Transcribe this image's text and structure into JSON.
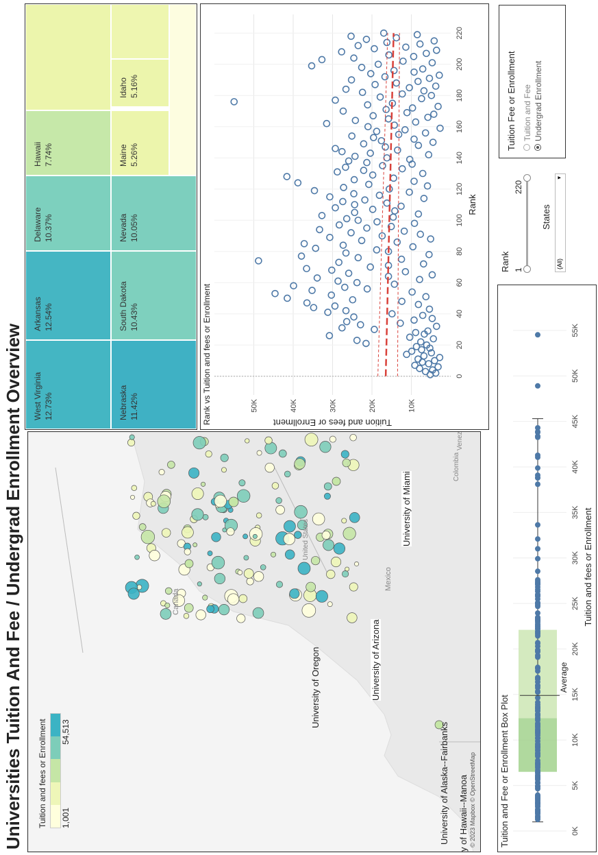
{
  "page_title": "Universities Tuition And Fee / Undergrad Enrollment Overview",
  "map": {
    "legend_title": "Tuition and fees or Enrollment",
    "legend_min": "1,001",
    "legend_max": "54,513",
    "legend_colors": [
      "#ffffdd",
      "#eef6b8",
      "#c5e6a6",
      "#7dcdb9",
      "#3bb3c4"
    ],
    "country_labels": [
      "Canada",
      "United States",
      "Mexico",
      "Colombia",
      "Venezuela"
    ],
    "university_labels": [
      "University of Alaska--Fairbanks",
      "University of Oregon",
      "University of Arizona",
      "University of Miami",
      "y of Hawaii--Manoa"
    ],
    "credit": "© 2023 Mapbox © OpenStreetMap"
  },
  "treemap": {
    "cells": [
      {
        "name": "West Virginia",
        "pct": "12.73%",
        "color": "#44b6c3"
      },
      {
        "name": "Arkansas",
        "pct": "12.54%",
        "color": "#45b6c3"
      },
      {
        "name": "Nebraska",
        "pct": "11.42%",
        "color": "#3fb1c4"
      },
      {
        "name": "South Dakota",
        "pct": "10.43%",
        "color": "#7ed0be"
      },
      {
        "name": "Delaware",
        "pct": "10.37%",
        "color": "#7dd0be"
      },
      {
        "name": "Nevada",
        "pct": "10.05%",
        "color": "#7dcfbe"
      },
      {
        "name": "Hawaii",
        "pct": "7.74%",
        "color": "#c6e8a9"
      },
      {
        "name": "Maine",
        "pct": "5.26%",
        "color": "#ecf5ac"
      },
      {
        "name": "Idaho",
        "pct": "5.16%",
        "color": "#ecf5ac"
      },
      {
        "name": "",
        "pct": "",
        "color": "#ecf5ac"
      },
      {
        "name": "",
        "pct": "",
        "color": "#eef6b0"
      },
      {
        "name": "",
        "pct": "",
        "color": "#fdfde0"
      }
    ]
  },
  "chart_data": [
    {
      "type": "scatter",
      "title": "Rank vs Tuition and fees or Enrollment",
      "xlabel": "Rank",
      "ylabel": "Tuition and fees or Enrollment",
      "xlim": [
        -12,
        232
      ],
      "ylim": [
        0,
        60000
      ],
      "x_ticks": [
        "0",
        "20",
        "40",
        "60",
        "80",
        "100",
        "120",
        "140",
        "160",
        "180",
        "200",
        "220"
      ],
      "y_ticks": [
        "10K",
        "20K",
        "30K",
        "40K",
        "50K"
      ],
      "trend": {
        "x": [
          0,
          220
        ],
        "y": [
          16500,
          14500
        ]
      },
      "band_upper": {
        "x": [
          0,
          220
        ],
        "y": [
          18500,
          16000
        ]
      },
      "band_lower": {
        "x": [
          0,
          220
        ],
        "y": [
          13500,
          13000
        ]
      },
      "points": [
        [
          1,
          5200
        ],
        [
          2,
          3800
        ],
        [
          3,
          6400
        ],
        [
          4,
          4600
        ],
        [
          5,
          7900
        ],
        [
          6,
          3200
        ],
        [
          7,
          9100
        ],
        [
          8,
          5600
        ],
        [
          9,
          7200
        ],
        [
          10,
          4100
        ],
        [
          11,
          8300
        ],
        [
          12,
          2800
        ],
        [
          13,
          6800
        ],
        [
          14,
          11200
        ],
        [
          15,
          4900
        ],
        [
          16,
          9900
        ],
        [
          17,
          7400
        ],
        [
          18,
          5300
        ],
        [
          19,
          8700
        ],
        [
          20,
          6100
        ],
        [
          21,
          21500
        ],
        [
          22,
          7600
        ],
        [
          23,
          23800
        ],
        [
          24,
          4400
        ],
        [
          25,
          10400
        ],
        [
          26,
          30800
        ],
        [
          27,
          6700
        ],
        [
          28,
          8900
        ],
        [
          29,
          5800
        ],
        [
          30,
          19400
        ],
        [
          31,
          27600
        ],
        [
          32,
          3600
        ],
        [
          33,
          22900
        ],
        [
          34,
          12800
        ],
        [
          35,
          26400
        ],
        [
          36,
          9300
        ],
        [
          37,
          4700
        ],
        [
          38,
          24600
        ],
        [
          39,
          7100
        ],
        [
          40,
          14900
        ],
        [
          41,
          31200
        ],
        [
          42,
          26600
        ],
        [
          43,
          5400
        ],
        [
          44,
          34800
        ],
        [
          45,
          29400
        ],
        [
          46,
          8200
        ],
        [
          47,
          36500
        ],
        [
          48,
          12400
        ],
        [
          49,
          24900
        ],
        [
          50,
          41500
        ],
        [
          51,
          6300
        ],
        [
          52,
          30300
        ],
        [
          53,
          44600
        ],
        [
          54,
          9800
        ],
        [
          55,
          35200
        ],
        [
          56,
          21200
        ],
        [
          57,
          26900
        ],
        [
          58,
          39900
        ],
        [
          59,
          14300
        ],
        [
          60,
          23800
        ],
        [
          61,
          28600
        ],
        [
          62,
          7900
        ],
        [
          63,
          33900
        ],
        [
          64,
          15800
        ],
        [
          65,
          4700
        ],
        [
          66,
          25900
        ],
        [
          67,
          11500
        ],
        [
          68,
          30200
        ],
        [
          69,
          36600
        ],
        [
          70,
          20400
        ],
        [
          71,
          15800
        ],
        [
          72,
          6900
        ],
        [
          73,
          28400
        ],
        [
          74,
          48800
        ],
        [
          75,
          12500
        ],
        [
          76,
          23500
        ],
        [
          77,
          37900
        ],
        [
          78,
          5500
        ],
        [
          79,
          26600
        ],
        [
          80,
          15800
        ],
        [
          81,
          18800
        ],
        [
          82,
          34300
        ],
        [
          83,
          9600
        ],
        [
          84,
          27300
        ],
        [
          85,
          37200
        ],
        [
          86,
          13600
        ],
        [
          87,
          22600
        ],
        [
          88,
          5100
        ],
        [
          89,
          30700
        ],
        [
          90,
          17400
        ],
        [
          91,
          7700
        ],
        [
          92,
          25300
        ],
        [
          93,
          11800
        ],
        [
          94,
          33300
        ],
        [
          95,
          21300
        ],
        [
          96,
          15100
        ],
        [
          97,
          28300
        ],
        [
          98,
          9200
        ],
        [
          99,
          18700
        ],
        [
          100,
          23500
        ],
        [
          101,
          26400
        ],
        [
          102,
          14600
        ],
        [
          103,
          32700
        ],
        [
          104,
          8200
        ],
        [
          105,
          24400
        ],
        [
          106,
          14200
        ],
        [
          107,
          19800
        ],
        [
          108,
          29300
        ],
        [
          109,
          12600
        ],
        [
          110,
          24400
        ],
        [
          111,
          16200
        ],
        [
          112,
          27400
        ],
        [
          113,
          21800
        ],
        [
          114,
          6800
        ],
        [
          115,
          30700
        ],
        [
          116,
          18100
        ],
        [
          117,
          24600
        ],
        [
          118,
          10500
        ],
        [
          119,
          34600
        ],
        [
          120,
          15600
        ],
        [
          121,
          27200
        ],
        [
          122,
          5900
        ],
        [
          123,
          20800
        ],
        [
          124,
          38800
        ],
        [
          125,
          9300
        ],
        [
          126,
          24500
        ],
        [
          127,
          14500
        ],
        [
          128,
          41600
        ],
        [
          129,
          19800
        ],
        [
          130,
          7100
        ],
        [
          131,
          28800
        ],
        [
          132,
          22100
        ],
        [
          133,
          12300
        ],
        [
          134,
          26700
        ],
        [
          135,
          17300
        ],
        [
          136,
          9800
        ],
        [
          137,
          21300
        ],
        [
          138,
          25900
        ],
        [
          139,
          10400
        ],
        [
          140,
          16200
        ],
        [
          141,
          24300
        ],
        [
          142,
          5600
        ],
        [
          143,
          20400
        ],
        [
          144,
          27600
        ],
        [
          145,
          13500
        ],
        [
          146,
          29300
        ],
        [
          147,
          16600
        ],
        [
          148,
          8200
        ],
        [
          149,
          22100
        ],
        [
          150,
          4500
        ],
        [
          151,
          17600
        ],
        [
          152,
          9300
        ],
        [
          153,
          19600
        ],
        [
          154,
          25100
        ],
        [
          155,
          13200
        ],
        [
          156,
          6400
        ],
        [
          157,
          18800
        ],
        [
          158,
          11600
        ],
        [
          159,
          2700
        ],
        [
          160,
          21000
        ],
        [
          161,
          14300
        ],
        [
          162,
          31500
        ],
        [
          163,
          8900
        ],
        [
          164,
          24200
        ],
        [
          165,
          15800
        ],
        [
          166,
          5800
        ],
        [
          167,
          19700
        ],
        [
          168,
          4300
        ],
        [
          169,
          11100
        ],
        [
          170,
          27300
        ],
        [
          171,
          16400
        ],
        [
          172,
          9700
        ],
        [
          173,
          3200
        ],
        [
          174,
          21100
        ],
        [
          175,
          14800
        ],
        [
          176,
          55000
        ],
        [
          177,
          29300
        ],
        [
          178,
          7400
        ],
        [
          179,
          17900
        ],
        [
          180,
          4900
        ],
        [
          181,
          12300
        ],
        [
          182,
          22400
        ],
        [
          183,
          6800
        ],
        [
          184,
          26600
        ],
        [
          185,
          10500
        ],
        [
          186,
          3800
        ],
        [
          187,
          19200
        ],
        [
          188,
          13800
        ],
        [
          189,
          8300
        ],
        [
          190,
          25200
        ],
        [
          191,
          5400
        ],
        [
          192,
          16700
        ],
        [
          193,
          2900
        ],
        [
          194,
          20300
        ],
        [
          195,
          9300
        ],
        [
          196,
          14400
        ],
        [
          197,
          7100
        ],
        [
          198,
          22600
        ],
        [
          199,
          35300
        ],
        [
          200,
          18400
        ],
        [
          201,
          4700
        ],
        [
          202,
          12100
        ],
        [
          203,
          32700
        ],
        [
          204,
          24600
        ],
        [
          205,
          9400
        ],
        [
          206,
          15700
        ],
        [
          207,
          6200
        ],
        [
          208,
          27700
        ],
        [
          209,
          3600
        ],
        [
          210,
          19400
        ],
        [
          211,
          11400
        ],
        [
          212,
          23500
        ],
        [
          213,
          7800
        ],
        [
          214,
          16200
        ],
        [
          215,
          4200
        ],
        [
          216,
          21400
        ],
        [
          217,
          13800
        ],
        [
          218,
          25300
        ],
        [
          219,
          8500
        ],
        [
          220,
          17000
        ]
      ]
    },
    {
      "type": "box",
      "title": "Tuition and Fee or Enrollment Box Plot",
      "xlabel": "Tuition and fees or Enrollment",
      "xlim": [
        0,
        58000
      ],
      "x_ticks": [
        "0K",
        "5K",
        "10K",
        "15K",
        "20K",
        "25K",
        "30K",
        "35K",
        "40K",
        "45K",
        "50K",
        "55K"
      ],
      "whisker_low": 1001,
      "q1": 6500,
      "median": 12400,
      "q3": 22100,
      "whisker_high": 45300,
      "average": 14900,
      "average_label": "Average",
      "outliers": [
        48900,
        54513
      ],
      "point_color": "#4e79a7"
    }
  ],
  "filters": {
    "rank_label": "Rank",
    "rank_min": "1",
    "rank_max": "220",
    "states_label": "States",
    "states_value": "(All)",
    "param_title": "Tuition Fee or Enrollment",
    "options": [
      "Tuition and Fee",
      "Undergrad Enrollment"
    ],
    "selected": 1
  }
}
